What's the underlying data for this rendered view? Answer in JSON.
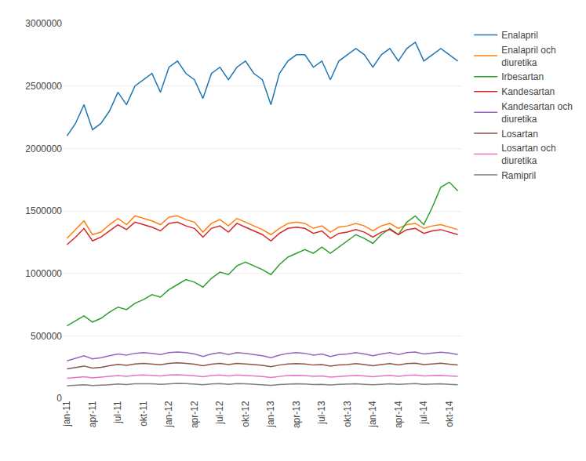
{
  "chart_data": {
    "type": "line",
    "categories": [
      "jan-11",
      null,
      null,
      "apr-11",
      null,
      null,
      "jul-11",
      null,
      null,
      "okt-11",
      null,
      null,
      "jan-12",
      null,
      null,
      "apr-12",
      null,
      null,
      "jul-12",
      null,
      null,
      "okt-12",
      null,
      null,
      "jan-13",
      null,
      null,
      "apr-13",
      null,
      null,
      "jul-13",
      null,
      null,
      "okt-13",
      null,
      null,
      "jan-14",
      null,
      null,
      "apr-14",
      null,
      null,
      "jul-14",
      null,
      null,
      "okt-14",
      null
    ],
    "ylim": [
      0,
      3000000
    ],
    "yticks": [
      0,
      500000,
      1000000,
      1500000,
      2000000,
      2500000,
      3000000
    ],
    "grid": true,
    "legend": "right",
    "series": [
      {
        "name": "Enalapril",
        "values": [
          2100000,
          2200000,
          2350000,
          2150000,
          2200000,
          2300000,
          2450000,
          2350000,
          2500000,
          2550000,
          2600000,
          2450000,
          2650000,
          2700000,
          2600000,
          2550000,
          2400000,
          2600000,
          2650000,
          2550000,
          2650000,
          2700000,
          2600000,
          2550000,
          2350000,
          2600000,
          2700000,
          2750000,
          2750000,
          2650000,
          2700000,
          2550000,
          2700000,
          2750000,
          2800000,
          2750000,
          2650000,
          2750000,
          2800000,
          2700000,
          2800000,
          2850000,
          2700000,
          2750000,
          2800000,
          2750000,
          2700000
        ]
      },
      {
        "name": "Enalapril och\ndiuretika",
        "values": [
          1280000,
          1350000,
          1420000,
          1310000,
          1330000,
          1390000,
          1440000,
          1390000,
          1460000,
          1440000,
          1420000,
          1390000,
          1450000,
          1460000,
          1430000,
          1410000,
          1330000,
          1400000,
          1430000,
          1380000,
          1440000,
          1410000,
          1380000,
          1350000,
          1310000,
          1360000,
          1400000,
          1410000,
          1400000,
          1360000,
          1380000,
          1330000,
          1370000,
          1380000,
          1400000,
          1380000,
          1340000,
          1380000,
          1400000,
          1360000,
          1390000,
          1400000,
          1360000,
          1380000,
          1390000,
          1370000,
          1350000
        ]
      },
      {
        "name": "Irbesartan",
        "values": [
          580000,
          620000,
          660000,
          610000,
          640000,
          690000,
          730000,
          710000,
          760000,
          790000,
          830000,
          810000,
          870000,
          910000,
          950000,
          930000,
          890000,
          960000,
          1010000,
          990000,
          1060000,
          1090000,
          1060000,
          1030000,
          990000,
          1070000,
          1130000,
          1160000,
          1190000,
          1160000,
          1210000,
          1160000,
          1210000,
          1260000,
          1310000,
          1280000,
          1240000,
          1310000,
          1360000,
          1310000,
          1410000,
          1460000,
          1390000,
          1530000,
          1690000,
          1730000,
          1660000
        ]
      },
      {
        "name": "Kandesartan",
        "values": [
          1230000,
          1290000,
          1360000,
          1260000,
          1290000,
          1340000,
          1390000,
          1350000,
          1410000,
          1390000,
          1370000,
          1340000,
          1400000,
          1410000,
          1380000,
          1360000,
          1290000,
          1360000,
          1380000,
          1330000,
          1400000,
          1370000,
          1340000,
          1310000,
          1260000,
          1320000,
          1360000,
          1370000,
          1360000,
          1320000,
          1340000,
          1280000,
          1320000,
          1330000,
          1350000,
          1330000,
          1290000,
          1330000,
          1350000,
          1310000,
          1350000,
          1360000,
          1320000,
          1340000,
          1350000,
          1330000,
          1310000
        ]
      },
      {
        "name": "Kandesartan och\ndiuretika",
        "values": [
          300000,
          320000,
          340000,
          315000,
          325000,
          340000,
          355000,
          345000,
          360000,
          365000,
          360000,
          350000,
          365000,
          370000,
          365000,
          355000,
          335000,
          355000,
          365000,
          350000,
          365000,
          360000,
          350000,
          340000,
          325000,
          345000,
          360000,
          365000,
          360000,
          345000,
          355000,
          335000,
          350000,
          355000,
          365000,
          355000,
          340000,
          355000,
          365000,
          350000,
          365000,
          370000,
          355000,
          360000,
          368000,
          362000,
          350000
        ]
      },
      {
        "name": "Losartan",
        "values": [
          235000,
          248000,
          258000,
          242000,
          248000,
          260000,
          272000,
          263000,
          275000,
          280000,
          275000,
          268000,
          280000,
          284000,
          280000,
          273000,
          260000,
          273000,
          280000,
          270000,
          280000,
          277000,
          270000,
          263000,
          253000,
          266000,
          275000,
          278000,
          275000,
          266000,
          270000,
          258000,
          267000,
          270000,
          278000,
          270000,
          260000,
          270000,
          278000,
          267000,
          278000,
          281000,
          270000,
          275000,
          281000,
          273000,
          267000
        ]
      },
      {
        "name": "Losartan och\ndiuretika",
        "values": [
          160000,
          167000,
          173000,
          163000,
          167000,
          175000,
          182000,
          176000,
          184000,
          187000,
          184000,
          179000,
          186000,
          188000,
          185000,
          181000,
          172000,
          182000,
          187000,
          179000,
          186000,
          184000,
          179000,
          174000,
          166000,
          175000,
          182000,
          184000,
          182000,
          175000,
          179000,
          170000,
          176000,
          179000,
          184000,
          179000,
          172000,
          179000,
          184000,
          176000,
          184000,
          187000,
          179000,
          182000,
          184000,
          179000,
          175000
        ]
      },
      {
        "name": "Ramipril",
        "values": [
          100000,
          104000,
          108000,
          102000,
          104000,
          109000,
          114000,
          110000,
          116000,
          118000,
          116000,
          112000,
          118000,
          120000,
          117000,
          114000,
          108000,
          114000,
          118000,
          112000,
          118000,
          116000,
          112000,
          108000,
          104000,
          110000,
          114000,
          116000,
          114000,
          110000,
          112000,
          107000,
          111000,
          112000,
          116000,
          112000,
          108000,
          112000,
          116000,
          111000,
          116000,
          118000,
          112000,
          114000,
          116000,
          112000,
          108000
        ]
      }
    ]
  }
}
